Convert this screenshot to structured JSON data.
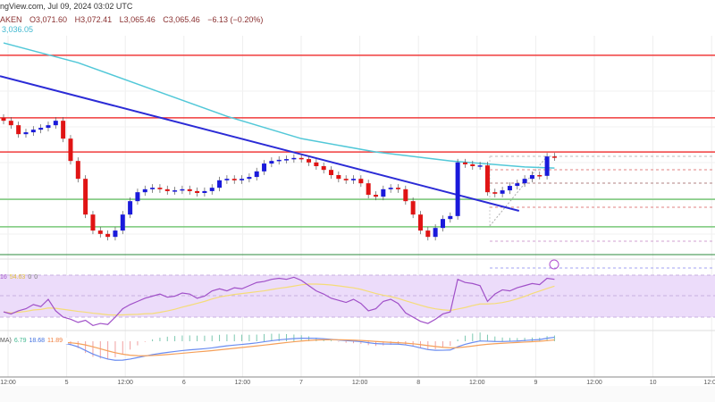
{
  "header": {
    "source": "ngView.com, Jul 09, 2024 03:02 UTC",
    "symbol": "AKEN",
    "open": "O3,071.60",
    "high": "H3,072.41",
    "low": "L3,065.46",
    "close": "C3,065.46",
    "change": "−6.13 (−0.20%)",
    "sma_value": "3,036.05"
  },
  "rsi_legend": {
    "a": "16",
    "b": "54.63",
    "c": "0",
    "d": "0"
  },
  "macd_legend": {
    "label": "MA)",
    "a": "6.79",
    "b": "18.68",
    "c": "11.89"
  },
  "colors": {
    "up": "#1a1adb",
    "down": "#e01414",
    "sma": "#52c8d8",
    "trend": "#2b2bd6",
    "resistance": "#f03c3c",
    "support": "#78c878",
    "rsi": "#a050c8",
    "rsi_ma": "#f5dc78",
    "rsi_band": "#ecdcfa",
    "macd": "#6a8cf0",
    "signal": "#f5a05a"
  },
  "chart_data": {
    "type": "candlestick",
    "closes": [
      3163,
      3151,
      3127,
      3132,
      3139,
      3144,
      3151,
      3163,
      3115,
      3055,
      3007,
      2911,
      2868,
      2859,
      2851,
      2868,
      2911,
      2947,
      2971,
      2979,
      2983,
      2979,
      2974,
      2976,
      2979,
      2974,
      2969,
      2974,
      2983,
      3003,
      3007,
      3003,
      3007,
      3012,
      3027,
      3048,
      3055,
      3058,
      3060,
      3063,
      3060,
      3051,
      3041,
      3031,
      3017,
      3007,
      3003,
      3007,
      2995,
      2964,
      2959,
      2979,
      2983,
      2979,
      2947,
      2911,
      2868,
      2851,
      2875,
      2899,
      2907,
      3051,
      3046,
      3041,
      3043,
      2971,
      2967,
      2976,
      2988,
      2995,
      3007,
      3017,
      3015,
      3067,
      3065
    ],
    "sma": {
      "indices": [
        0,
        10,
        20,
        30,
        40,
        50,
        60,
        70,
        74
      ],
      "values": [
        3372,
        3319,
        3247,
        3175,
        3115,
        3079,
        3055,
        3039,
        3036
      ]
    },
    "resistance_levels": [
      3339,
      3171,
      3079
    ],
    "support_levels": [
      2952,
      2878
    ],
    "trendline": {
      "start_index": 0,
      "start": 3283,
      "end_index": 69,
      "end": 2921
    },
    "rsi": [
      35,
      33,
      36,
      38,
      42,
      40,
      47,
      36,
      30,
      28,
      25,
      27,
      22,
      24,
      23,
      30,
      38,
      42,
      45,
      48,
      50,
      52,
      49,
      50,
      53,
      52,
      48,
      50,
      55,
      57,
      55,
      58,
      57,
      60,
      63,
      64,
      66,
      67,
      66,
      68,
      65,
      60,
      55,
      52,
      48,
      46,
      44,
      47,
      43,
      36,
      38,
      45,
      47,
      43,
      34,
      30,
      26,
      24,
      28,
      33,
      35,
      66,
      63,
      62,
      60,
      45,
      52,
      56,
      55,
      58,
      60,
      62,
      61,
      67,
      66
    ],
    "x_ticks": [
      "12:00",
      "5",
      "12:00",
      "6",
      "12:00",
      "7",
      "12:00",
      "8",
      "12:00",
      "9",
      "12:00",
      "10",
      "12:00"
    ]
  }
}
